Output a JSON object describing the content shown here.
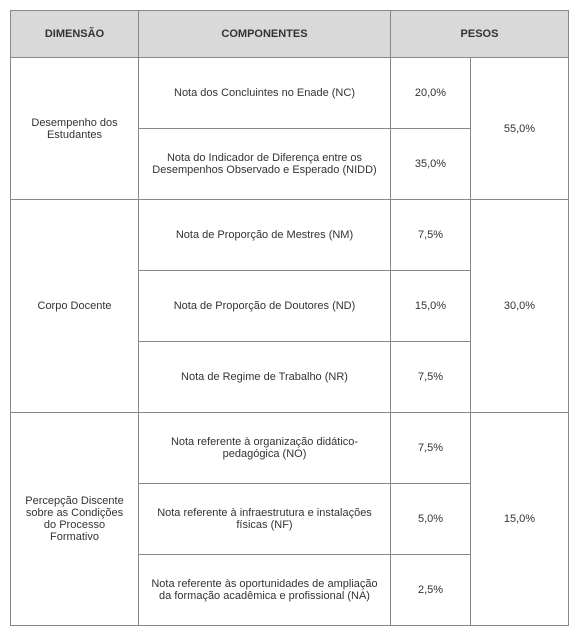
{
  "headers": {
    "dimensao": "DIMENSÃO",
    "componentes": "COMPONENTES",
    "pesos": "PESOS"
  },
  "groups": [
    {
      "dim": "Desempenho dos Estudantes",
      "total": "55,0%",
      "rows": [
        {
          "comp": "Nota dos Concluintes no Enade (NC)",
          "peso": "20,0%"
        },
        {
          "comp": "Nota do Indicador de Diferença entre os Desempenhos Observado e Esperado (NIDD)",
          "peso": "35,0%"
        }
      ]
    },
    {
      "dim": "Corpo Docente",
      "total": "30,0%",
      "rows": [
        {
          "comp": "Nota de Proporção de Mestres (NM)",
          "peso": "7,5%"
        },
        {
          "comp": "Nota de Proporção de Doutores (ND)",
          "peso": "15,0%"
        },
        {
          "comp": "Nota de Regime de Trabalho (NR)",
          "peso": "7,5%"
        }
      ]
    },
    {
      "dim": "Percepção Discente sobre as Condições do Processo Formativo",
      "total": "15,0%",
      "rows": [
        {
          "comp": "Nota referente à organização didático-pedagógica (NO)",
          "peso": "7,5%"
        },
        {
          "comp": "Nota referente à infraestrutura e instalações físicas (NF)",
          "peso": "5,0%"
        },
        {
          "comp": "Nota referente às oportunidades de ampliação da formação acadêmica e profissional (NA)",
          "peso": "2,5%"
        }
      ]
    }
  ]
}
